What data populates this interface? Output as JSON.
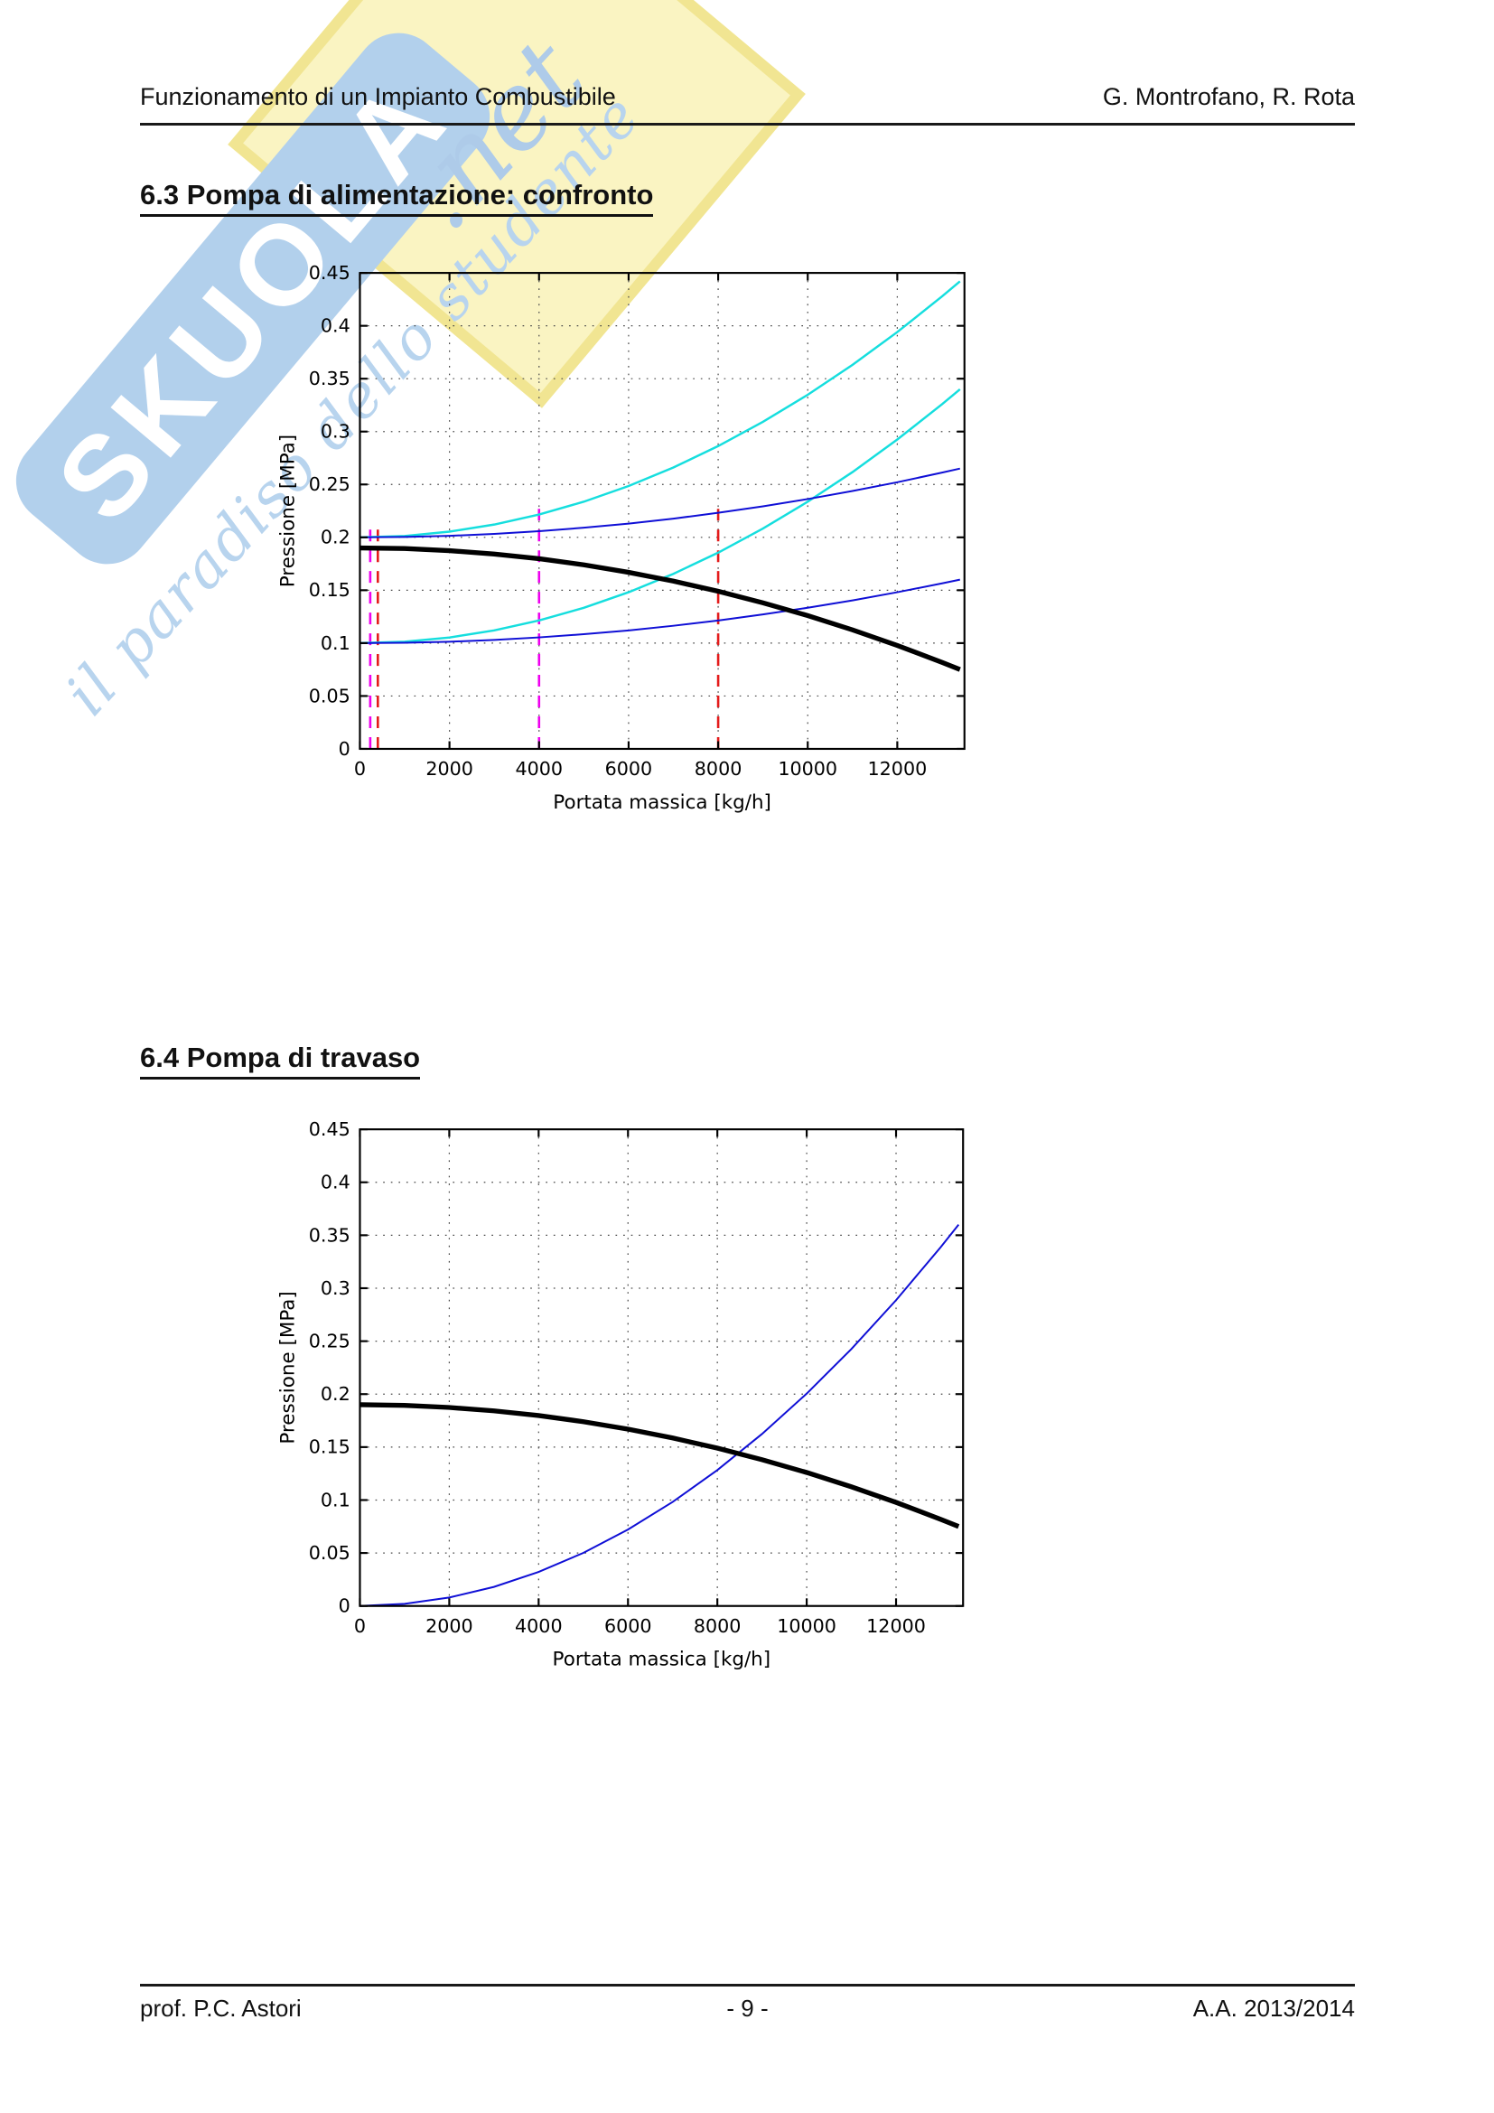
{
  "page": {
    "header": {
      "title_left": "Funzionamento di un Impianto Combustibile",
      "title_right": "G. Montrofano, R. Rota"
    },
    "sections": [
      {
        "heading": "6.3 Pompa di alimentazione: confronto"
      },
      {
        "heading": "6.4 Pompa di travaso"
      }
    ],
    "footer": {
      "left": "prof. P.C. Astori",
      "center": "- 9 -",
      "right": "A.A. 2013/2014"
    },
    "watermark": {
      "brand": "SKUOLA",
      "brand_suffix": ".net",
      "tagline": "il paradiso dello studente",
      "banner_color": "#b2d0ec",
      "brand_text_color": "#ffffff",
      "diamond_color": "#faf4c2",
      "script_color": "#b8d4ee"
    }
  },
  "chart_data": [
    {
      "type": "line",
      "section": "6.3 Pompa di alimentazione: confronto",
      "xlabel": "Portata massica [kg/h]",
      "ylabel": "Pressione [MPa]",
      "xlim": [
        0,
        13500
      ],
      "ylim": [
        0,
        0.45
      ],
      "x_ticks": [
        0,
        2000,
        4000,
        6000,
        8000,
        10000,
        12000
      ],
      "y_ticks": [
        "0",
        "0.05",
        "0.1",
        "0.15",
        "0.2",
        "0.25",
        "0.3",
        "0.35",
        "0.4",
        "0.45"
      ],
      "grid": "dotted",
      "legend": "none",
      "x": [
        0,
        1000,
        2000,
        3000,
        4000,
        5000,
        6000,
        7000,
        8000,
        9000,
        10000,
        11000,
        12000,
        13000,
        13400
      ],
      "series": [
        {
          "name": "circuit-curve-cyan-upper",
          "color": "#15dede",
          "width": 3.2,
          "values": [
            0.2,
            0.2013,
            0.2054,
            0.2121,
            0.2216,
            0.2337,
            0.2485,
            0.266,
            0.2863,
            0.3092,
            0.3348,
            0.3631,
            0.3941,
            0.4278,
            0.442
          ]
        },
        {
          "name": "circuit-curve-cyan-lower",
          "color": "#15dede",
          "width": 3.2,
          "values": [
            0.1,
            0.1013,
            0.1053,
            0.112,
            0.1214,
            0.1334,
            0.1481,
            0.1655,
            0.1855,
            0.2083,
            0.2337,
            0.2617,
            0.2925,
            0.3259,
            0.34
          ]
        },
        {
          "name": "circuit-curve-blue-upper",
          "color": "#0f0fd6",
          "width": 2.6,
          "values": [
            0.2,
            0.2004,
            0.2014,
            0.2033,
            0.2058,
            0.2091,
            0.213,
            0.2177,
            0.2232,
            0.2293,
            0.2362,
            0.2438,
            0.2521,
            0.2612,
            0.265
          ]
        },
        {
          "name": "circuit-curve-blue-lower",
          "color": "#0f0fd6",
          "width": 2.6,
          "values": [
            0.1,
            0.1003,
            0.1013,
            0.103,
            0.1054,
            0.1084,
            0.112,
            0.1164,
            0.1214,
            0.1271,
            0.1334,
            0.1404,
            0.1481,
            0.1565,
            0.16
          ]
        },
        {
          "name": "pump-characteristic-black",
          "color": "#000000",
          "width": 7,
          "values": [
            0.19,
            0.1894,
            0.1874,
            0.1842,
            0.1798,
            0.174,
            0.1669,
            0.1586,
            0.149,
            0.1381,
            0.126,
            0.1125,
            0.0978,
            0.0818,
            0.075
          ]
        }
      ],
      "vlines": [
        {
          "x": 230,
          "top": 0.208,
          "color": "#ee00ee",
          "style": "dashed"
        },
        {
          "x": 400,
          "top": 0.208,
          "color": "#e41b1b",
          "style": "dashed"
        },
        {
          "x": 4000,
          "top": 0.227,
          "color": "#ee00ee",
          "style": "dashed"
        },
        {
          "x": 8000,
          "top": 0.227,
          "color": "#e41b1b",
          "style": "dashed"
        }
      ]
    },
    {
      "type": "line",
      "section": "6.4 Pompa di travaso",
      "xlabel": "Portata massica [kg/h]",
      "ylabel": "Pressione [MPa]",
      "xlim": [
        0,
        13500
      ],
      "ylim": [
        0,
        0.45
      ],
      "x_ticks": [
        0,
        2000,
        4000,
        6000,
        8000,
        10000,
        12000
      ],
      "y_ticks": [
        "0",
        "0.05",
        "0.1",
        "0.15",
        "0.2",
        "0.25",
        "0.3",
        "0.35",
        "0.4",
        "0.45"
      ],
      "grid": "dotted",
      "legend": "none",
      "x": [
        0,
        1000,
        2000,
        3000,
        4000,
        5000,
        6000,
        7000,
        8000,
        9000,
        10000,
        11000,
        12000,
        13000,
        13400
      ],
      "series": [
        {
          "name": "circuit-curve-blue",
          "color": "#0f0fd6",
          "width": 2.6,
          "values": [
            0,
            0.002,
            0.008,
            0.018,
            0.0321,
            0.0501,
            0.0722,
            0.0982,
            0.1283,
            0.1624,
            0.2005,
            0.2426,
            0.2887,
            0.3388,
            0.36
          ]
        },
        {
          "name": "pump-characteristic-black",
          "color": "#000000",
          "width": 7,
          "values": [
            0.19,
            0.1894,
            0.1874,
            0.1842,
            0.1798,
            0.174,
            0.1669,
            0.1586,
            0.149,
            0.1381,
            0.126,
            0.1125,
            0.0978,
            0.0818,
            0.075
          ]
        }
      ],
      "vlines": []
    }
  ]
}
